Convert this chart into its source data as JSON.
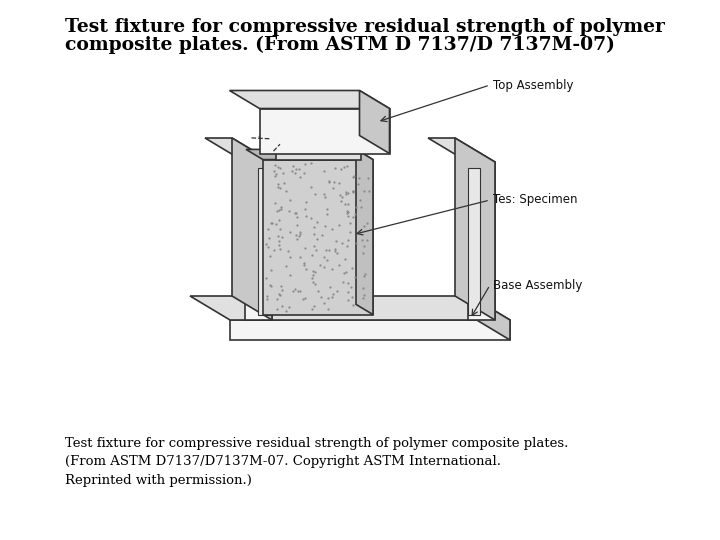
{
  "title_line1": "Test fixture for compressive residual strength of polymer",
  "title_line2": "composite plates. (From ASTM D 7137/D 7137M-07)",
  "caption": "Test fixture for compressive residual strength of polymer composite plates.\n(From ASTM D7137/D7137M-07. Copyright ASTM International.\nReprinted with permission.)",
  "label_top": "Top Assembly",
  "label_specimen": "Tes: Specimen",
  "label_base": "Base Assembly",
  "bg_color": "#ffffff",
  "title_fontsize": 13.5,
  "caption_fontsize": 9.5,
  "label_fontsize": 8.5,
  "fig_width": 7.2,
  "fig_height": 5.4,
  "dpi": 100
}
